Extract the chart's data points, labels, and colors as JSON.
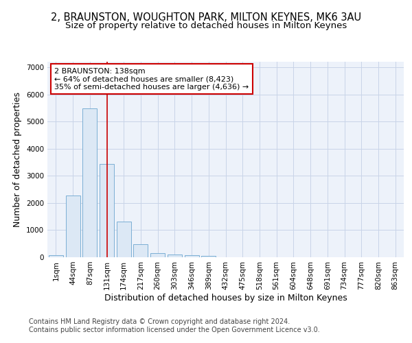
{
  "title_line1": "2, BRAUNSTON, WOUGHTON PARK, MILTON KEYNES, MK6 3AU",
  "title_line2": "Size of property relative to detached houses in Milton Keynes",
  "xlabel": "Distribution of detached houses by size in Milton Keynes",
  "ylabel": "Number of detached properties",
  "categories": [
    "1sqm",
    "44sqm",
    "87sqm",
    "131sqm",
    "174sqm",
    "217sqm",
    "260sqm",
    "303sqm",
    "346sqm",
    "389sqm",
    "432sqm",
    "475sqm",
    "518sqm",
    "561sqm",
    "604sqm",
    "648sqm",
    "691sqm",
    "734sqm",
    "777sqm",
    "820sqm",
    "863sqm"
  ],
  "values": [
    80,
    2280,
    5480,
    3440,
    1310,
    470,
    155,
    90,
    65,
    40,
    0,
    0,
    0,
    0,
    0,
    0,
    0,
    0,
    0,
    0,
    0
  ],
  "bar_color": "#dce8f5",
  "bar_edge_color": "#7bafd4",
  "red_line_x": 3.0,
  "annotation_text": "2 BRAUNSTON: 138sqm\n← 64% of detached houses are smaller (8,423)\n35% of semi-detached houses are larger (4,636) →",
  "annotation_box_color": "#ffffff",
  "annotation_box_edge_color": "#cc0000",
  "annotation_text_color": "#000000",
  "red_line_color": "#cc0000",
  "ylim": [
    0,
    7200
  ],
  "yticks": [
    0,
    1000,
    2000,
    3000,
    4000,
    5000,
    6000,
    7000
  ],
  "grid_color": "#c8d4e8",
  "plot_bg_color": "#edf2fa",
  "footer_line1": "Contains HM Land Registry data © Crown copyright and database right 2024.",
  "footer_line2": "Contains public sector information licensed under the Open Government Licence v3.0.",
  "title_fontsize": 10.5,
  "subtitle_fontsize": 9.5,
  "axis_label_fontsize": 9,
  "tick_fontsize": 7.5,
  "annotation_fontsize": 8,
  "footer_fontsize": 7
}
